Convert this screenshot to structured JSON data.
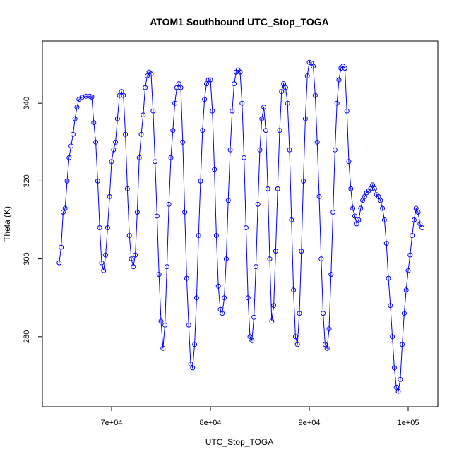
{
  "chart_data": {
    "type": "scatter",
    "title": "ATOM1 Southbound UTC_Stop_TOGA",
    "xlabel": "UTC_Stop_TOGA",
    "ylabel": "Theta (K)",
    "xlim": [
      63000,
      103000
    ],
    "ylim": [
      262,
      356
    ],
    "x_ticks": [
      70000,
      80000,
      90000,
      100000
    ],
    "x_tick_labels": [
      "7e+04",
      "8e+04",
      "9e+04",
      "1e+05"
    ],
    "y_ticks": [
      280,
      300,
      320,
      340
    ],
    "y_tick_labels": [
      "280",
      "300",
      "320",
      "340"
    ],
    "grid": false,
    "legend": "none",
    "marker": "open-circle",
    "connect_points": true,
    "color": "#0000ff",
    "series": [
      {
        "points": [
          [
            64700,
            299
          ],
          [
            64900,
            303
          ],
          [
            65100,
            312
          ],
          [
            65300,
            313
          ],
          [
            65500,
            320
          ],
          [
            65700,
            326
          ],
          [
            65900,
            329
          ],
          [
            66100,
            332
          ],
          [
            66300,
            336
          ],
          [
            66500,
            339
          ],
          [
            66700,
            341
          ],
          [
            67000,
            341.5
          ],
          [
            67400,
            341.8
          ],
          [
            67800,
            341.8
          ],
          [
            68000,
            341.6
          ],
          [
            68200,
            335
          ],
          [
            68400,
            330
          ],
          [
            68600,
            320
          ],
          [
            68800,
            308
          ],
          [
            69000,
            299
          ],
          [
            69200,
            297
          ],
          [
            69400,
            301
          ],
          [
            69600,
            308
          ],
          [
            69800,
            316
          ],
          [
            70000,
            325
          ],
          [
            70200,
            328
          ],
          [
            70400,
            330
          ],
          [
            70600,
            336
          ],
          [
            70800,
            342
          ],
          [
            71000,
            343
          ],
          [
            71200,
            342
          ],
          [
            71400,
            332
          ],
          [
            71600,
            318
          ],
          [
            71800,
            306
          ],
          [
            72000,
            300
          ],
          [
            72200,
            298
          ],
          [
            72400,
            301
          ],
          [
            72600,
            312
          ],
          [
            72800,
            326
          ],
          [
            73000,
            332
          ],
          [
            73200,
            337
          ],
          [
            73400,
            344
          ],
          [
            73600,
            347
          ],
          [
            73800,
            348
          ],
          [
            74000,
            347.5
          ],
          [
            74200,
            338
          ],
          [
            74400,
            325
          ],
          [
            74600,
            311
          ],
          [
            74800,
            296
          ],
          [
            75000,
            284
          ],
          [
            75200,
            277
          ],
          [
            75400,
            283
          ],
          [
            75600,
            298
          ],
          [
            75800,
            314
          ],
          [
            76000,
            326
          ],
          [
            76200,
            333
          ],
          [
            76400,
            340
          ],
          [
            76600,
            344
          ],
          [
            76800,
            345
          ],
          [
            77000,
            344
          ],
          [
            77200,
            330
          ],
          [
            77400,
            312
          ],
          [
            77600,
            295
          ],
          [
            77800,
            283
          ],
          [
            78000,
            273
          ],
          [
            78200,
            272
          ],
          [
            78400,
            278
          ],
          [
            78600,
            290
          ],
          [
            78800,
            306
          ],
          [
            79000,
            320
          ],
          [
            79200,
            333
          ],
          [
            79400,
            341
          ],
          [
            79600,
            345
          ],
          [
            79800,
            346
          ],
          [
            80000,
            346
          ],
          [
            80200,
            338
          ],
          [
            80400,
            323
          ],
          [
            80600,
            306
          ],
          [
            80800,
            293
          ],
          [
            81000,
            287
          ],
          [
            81200,
            286
          ],
          [
            81400,
            290
          ],
          [
            81600,
            300
          ],
          [
            81800,
            315
          ],
          [
            82000,
            328
          ],
          [
            82200,
            338
          ],
          [
            82400,
            345
          ],
          [
            82600,
            348
          ],
          [
            82800,
            348.5
          ],
          [
            83000,
            348
          ],
          [
            83200,
            340
          ],
          [
            83400,
            326
          ],
          [
            83600,
            308
          ],
          [
            83800,
            290
          ],
          [
            84000,
            280
          ],
          [
            84200,
            279
          ],
          [
            84400,
            285
          ],
          [
            84600,
            298
          ],
          [
            84800,
            314
          ],
          [
            85000,
            328
          ],
          [
            85200,
            336
          ],
          [
            85400,
            339
          ],
          [
            85600,
            333
          ],
          [
            85800,
            318
          ],
          [
            86000,
            300
          ],
          [
            86200,
            284
          ],
          [
            86400,
            288
          ],
          [
            86600,
            302
          ],
          [
            86800,
            318
          ],
          [
            87000,
            333
          ],
          [
            87200,
            343
          ],
          [
            87400,
            345
          ],
          [
            87600,
            344
          ],
          [
            87800,
            340
          ],
          [
            88000,
            328
          ],
          [
            88200,
            310
          ],
          [
            88400,
            292
          ],
          [
            88600,
            280
          ],
          [
            88800,
            278
          ],
          [
            89000,
            286
          ],
          [
            89200,
            302
          ],
          [
            89400,
            320
          ],
          [
            89600,
            336
          ],
          [
            89800,
            347
          ],
          [
            90000,
            350.5
          ],
          [
            90200,
            350.3
          ],
          [
            90400,
            349.5
          ],
          [
            90600,
            342
          ],
          [
            90800,
            330
          ],
          [
            91000,
            316
          ],
          [
            91200,
            300
          ],
          [
            91400,
            286
          ],
          [
            91600,
            278
          ],
          [
            91800,
            277
          ],
          [
            92000,
            282
          ],
          [
            92200,
            296
          ],
          [
            92400,
            312
          ],
          [
            92600,
            328
          ],
          [
            92800,
            340
          ],
          [
            93000,
            346
          ],
          [
            93200,
            349
          ],
          [
            93400,
            349.5
          ],
          [
            93600,
            349
          ],
          [
            93800,
            338
          ],
          [
            94000,
            325
          ],
          [
            94200,
            318
          ],
          [
            94400,
            313
          ],
          [
            94600,
            311
          ],
          [
            94800,
            309
          ],
          [
            95000,
            310
          ],
          [
            95200,
            313
          ],
          [
            95400,
            315
          ],
          [
            95600,
            316
          ],
          [
            95800,
            317
          ],
          [
            96000,
            317.5
          ],
          [
            96200,
            318
          ],
          [
            96400,
            319
          ],
          [
            96600,
            318
          ],
          [
            96800,
            316.5
          ],
          [
            97000,
            316
          ],
          [
            97200,
            315
          ],
          [
            97400,
            313
          ],
          [
            97600,
            310
          ],
          [
            97800,
            304
          ],
          [
            98000,
            295
          ],
          [
            98200,
            288
          ],
          [
            98400,
            280
          ],
          [
            98600,
            272
          ],
          [
            98800,
            267
          ],
          [
            99000,
            266
          ],
          [
            99200,
            269
          ],
          [
            99400,
            278
          ],
          [
            99600,
            286
          ],
          [
            99800,
            292
          ],
          [
            100000,
            297
          ],
          [
            100200,
            301
          ],
          [
            100400,
            306
          ],
          [
            100600,
            310
          ],
          [
            100800,
            313
          ],
          [
            101000,
            312
          ],
          [
            101200,
            309
          ],
          [
            101400,
            308
          ]
        ]
      }
    ]
  }
}
